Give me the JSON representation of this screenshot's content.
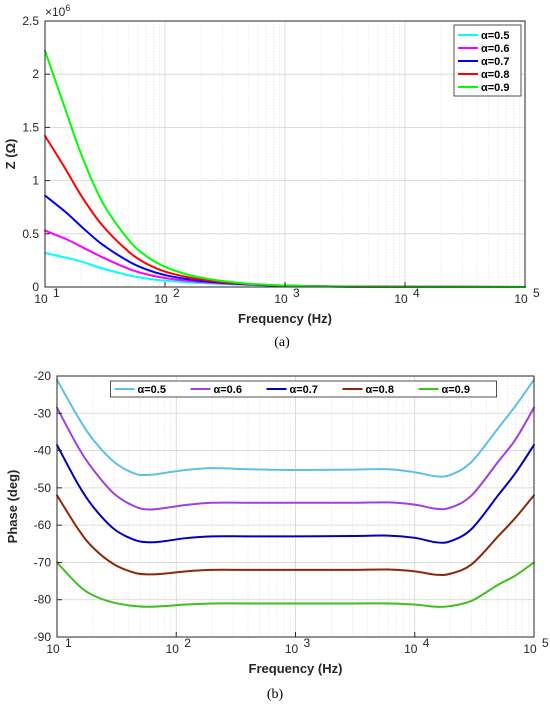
{
  "figure": {
    "caption_a": "(a)",
    "caption_b": "(b)"
  },
  "chart_data": [
    {
      "type": "line",
      "title": "",
      "xlabel": "Frequency (Hz)",
      "ylabel": "Z (Ω)",
      "xscale": "log",
      "xlim": [
        10,
        100000
      ],
      "ylim": [
        0,
        2500000
      ],
      "y_exponent_label": "×10",
      "y_exponent_power": "6",
      "x_ticks": [
        10,
        100,
        1000,
        10000,
        100000
      ],
      "x_tick_labels": [
        {
          "base": "10",
          "exp": "1"
        },
        {
          "base": "10",
          "exp": "2"
        },
        {
          "base": "10",
          "exp": "3"
        },
        {
          "base": "10",
          "exp": "4"
        },
        {
          "base": "10",
          "exp": "5"
        }
      ],
      "y_ticks": [
        0,
        500000,
        1000000,
        1500000,
        2000000,
        2500000
      ],
      "y_tick_labels": [
        "0",
        "0.5",
        "1",
        "1.5",
        "2",
        "2.5"
      ],
      "grid": true,
      "legend_position": "top-right",
      "series": [
        {
          "name": "α=0.5",
          "color": "#00ffff",
          "x": [
            10,
            15,
            20,
            30,
            50,
            70,
            100,
            150,
            200,
            300,
            500,
            1000,
            3000,
            10000,
            100000
          ],
          "y": [
            320000,
            275000,
            240000,
            175000,
            110000,
            80000,
            60000,
            45000,
            37000,
            28000,
            20000,
            12000,
            6000,
            3000,
            1000
          ]
        },
        {
          "name": "α=0.6",
          "color": "#ff00ff",
          "x": [
            10,
            15,
            20,
            30,
            50,
            70,
            100,
            150,
            200,
            300,
            500,
            1000,
            3000,
            10000,
            100000
          ],
          "y": [
            530000,
            450000,
            380000,
            280000,
            170000,
            120000,
            85000,
            60000,
            48000,
            35000,
            24000,
            13000,
            5000,
            2000,
            500
          ]
        },
        {
          "name": "α=0.7",
          "color": "#0000ff",
          "x": [
            10,
            15,
            20,
            30,
            50,
            70,
            100,
            150,
            200,
            300,
            500,
            1000,
            3000,
            10000,
            100000
          ],
          "y": [
            860000,
            700000,
            570000,
            400000,
            240000,
            165000,
            112000,
            76000,
            58000,
            40000,
            25000,
            12000,
            4000,
            1500,
            300
          ]
        },
        {
          "name": "α=0.8",
          "color": "#ff0000",
          "x": [
            10,
            15,
            20,
            30,
            50,
            70,
            100,
            150,
            200,
            300,
            500,
            1000,
            3000,
            10000,
            100000
          ],
          "y": [
            1420000,
            1100000,
            860000,
            580000,
            330000,
            220000,
            145000,
            95000,
            70000,
            46000,
            27000,
            12000,
            3500,
            1200,
            200
          ]
        },
        {
          "name": "α=0.9",
          "color": "#00ff00",
          "x": [
            10,
            15,
            20,
            30,
            50,
            70,
            100,
            150,
            200,
            300,
            500,
            1000,
            3000,
            10000,
            100000
          ],
          "y": [
            2220000,
            1650000,
            1250000,
            800000,
            440000,
            290000,
            190000,
            120000,
            88000,
            56000,
            31000,
            13000,
            3500,
            1000,
            200
          ]
        }
      ]
    },
    {
      "type": "line",
      "title": "",
      "xlabel": "Frequency (Hz)",
      "ylabel": "Phase (deg)",
      "xscale": "log",
      "xlim": [
        10,
        100000
      ],
      "ylim": [
        -90,
        -20
      ],
      "x_ticks": [
        10,
        100,
        1000,
        10000,
        100000
      ],
      "x_tick_labels": [
        {
          "base": "10",
          "exp": "1"
        },
        {
          "base": "10",
          "exp": "2"
        },
        {
          "base": "10",
          "exp": "3"
        },
        {
          "base": "10",
          "exp": "4"
        },
        {
          "base": "10",
          "exp": "5"
        }
      ],
      "y_ticks": [
        -90,
        -80,
        -70,
        -60,
        -50,
        -40,
        -30,
        -20
      ],
      "y_tick_labels": [
        "-90",
        "-80",
        "-70",
        "-60",
        "-50",
        "-40",
        "-30",
        "-20"
      ],
      "grid": true,
      "legend_position": "top-center",
      "series": [
        {
          "name": "α=0.5",
          "color": "#5fbfe8",
          "x": [
            10,
            15,
            20,
            30,
            45,
            60,
            80,
            120,
            200,
            400,
            1000,
            3000,
            6000,
            10000,
            15000,
            20000,
            30000,
            50000,
            70000,
            100000
          ],
          "y": [
            -21,
            -31,
            -37,
            -43,
            -46.2,
            -46.5,
            -46.0,
            -45.2,
            -44.7,
            -45.0,
            -45.2,
            -45.1,
            -45.0,
            -45.8,
            -46.9,
            -46.5,
            -43,
            -34,
            -28,
            -21
          ]
        },
        {
          "name": "α=0.6",
          "color": "#a040e0",
          "x": [
            10,
            15,
            20,
            30,
            45,
            60,
            80,
            120,
            200,
            400,
            1000,
            3000,
            6000,
            10000,
            15000,
            20000,
            30000,
            50000,
            70000,
            100000
          ],
          "y": [
            -28.5,
            -39,
            -45,
            -51.5,
            -55,
            -55.8,
            -55.4,
            -54.6,
            -54.0,
            -54.0,
            -54.0,
            -54.0,
            -53.9,
            -54.5,
            -55.6,
            -55.3,
            -52,
            -43,
            -37,
            -28.5
          ]
        },
        {
          "name": "α=0.7",
          "color": "#0000c0",
          "x": [
            10,
            15,
            20,
            30,
            45,
            60,
            80,
            120,
            200,
            400,
            1000,
            3000,
            6000,
            10000,
            15000,
            20000,
            30000,
            50000,
            70000,
            100000
          ],
          "y": [
            -38.5,
            -49,
            -55,
            -61,
            -64,
            -64.6,
            -64.3,
            -63.5,
            -63.0,
            -63.0,
            -63.0,
            -62.9,
            -62.8,
            -63.4,
            -64.6,
            -64.3,
            -61,
            -52,
            -46,
            -38.5
          ]
        },
        {
          "name": "α=0.8",
          "color": "#8b2a0a",
          "x": [
            10,
            15,
            20,
            30,
            45,
            60,
            80,
            120,
            200,
            400,
            1000,
            3000,
            6000,
            10000,
            15000,
            20000,
            30000,
            50000,
            70000,
            100000
          ],
          "y": [
            -52,
            -61,
            -66,
            -70.5,
            -72.8,
            -73.2,
            -73.0,
            -72.4,
            -72.0,
            -72.0,
            -72.0,
            -72.0,
            -71.9,
            -72.4,
            -73.3,
            -73.0,
            -70.5,
            -63,
            -58,
            -52
          ]
        },
        {
          "name": "α=0.9",
          "color": "#40c020",
          "x": [
            10,
            15,
            20,
            30,
            45,
            60,
            80,
            120,
            200,
            400,
            1000,
            3000,
            6000,
            10000,
            15000,
            20000,
            30000,
            50000,
            70000,
            100000
          ],
          "y": [
            -70,
            -76,
            -78.8,
            -80.8,
            -81.7,
            -81.9,
            -81.7,
            -81.3,
            -81.0,
            -81.0,
            -81.0,
            -81.0,
            -81.0,
            -81.3,
            -81.9,
            -81.7,
            -80.3,
            -76,
            -73.5,
            -70
          ]
        }
      ]
    }
  ]
}
